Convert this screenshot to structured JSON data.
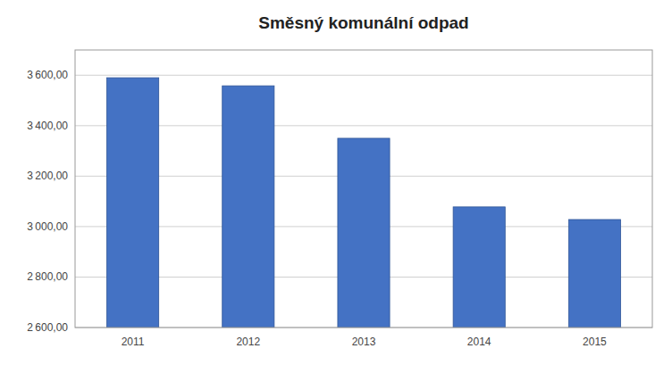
{
  "chart_data": {
    "type": "bar",
    "title": "Směsný komunální odpad",
    "categories": [
      "2011",
      "2012",
      "2013",
      "2014",
      "2015"
    ],
    "values": [
      3590,
      3558,
      3350,
      3078,
      3028
    ],
    "color": "#4472C4",
    "ylim": [
      2600,
      3700
    ],
    "yticks": [
      {
        "value": 2600,
        "label": "2 600,00"
      },
      {
        "value": 2800,
        "label": "2 800,00"
      },
      {
        "value": 3000,
        "label": "3 000,00"
      },
      {
        "value": 3200,
        "label": "3 200,00"
      },
      {
        "value": 3400,
        "label": "3 400,00"
      },
      {
        "value": 3600,
        "label": "3 600,00"
      }
    ],
    "grid": true
  }
}
